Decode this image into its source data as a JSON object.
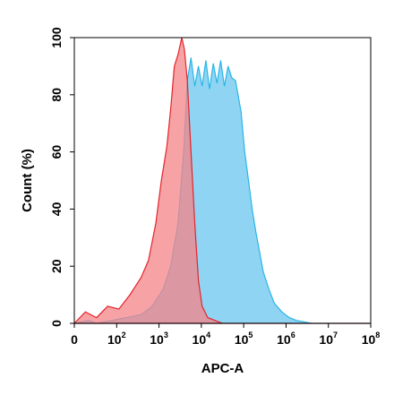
{
  "chart_data": {
    "type": "area",
    "xlabel": "APC-A",
    "ylabel": "Count (%)",
    "x_scale": "log",
    "xlim_exp": [
      0,
      8
    ],
    "ylim": [
      0,
      100
    ],
    "grid": false,
    "x_ticks": [
      {
        "base": "0",
        "exp": ""
      },
      {
        "base": "10",
        "exp": "2"
      },
      {
        "base": "10",
        "exp": "3"
      },
      {
        "base": "10",
        "exp": "4"
      },
      {
        "base": "10",
        "exp": "5"
      },
      {
        "base": "10",
        "exp": "6"
      },
      {
        "base": "10",
        "exp": "7"
      },
      {
        "base": "10",
        "exp": "8"
      }
    ],
    "y_ticks": [
      "0",
      "20",
      "40",
      "60",
      "80",
      "100"
    ],
    "series": [
      {
        "color": "#29b6e8",
        "fill": "#8fd4f2",
        "x_exp": [
          0.0,
          0.4,
          0.6,
          1.0,
          1.4,
          1.8,
          2.1,
          2.4,
          2.6,
          2.8,
          2.95,
          3.05,
          3.15,
          3.25,
          3.35,
          3.45,
          3.55,
          3.65,
          3.75,
          3.85,
          3.95,
          4.05,
          4.15,
          4.25,
          4.35,
          4.5,
          4.6,
          4.7,
          4.8,
          4.9,
          5.0,
          5.1,
          5.25,
          5.4,
          5.6,
          5.8,
          6.0,
          6.2,
          6.4,
          8.0
        ],
        "y": [
          0,
          1,
          0,
          1,
          2,
          3,
          6,
          12,
          20,
          35,
          60,
          85,
          93,
          83,
          90,
          83,
          92,
          82,
          91,
          84,
          92,
          83,
          90,
          86,
          85,
          74,
          60,
          50,
          40,
          32,
          25,
          18,
          12,
          7,
          4,
          2,
          1,
          0.5,
          0,
          0
        ]
      },
      {
        "color": "#e3242b",
        "fill": "#f48488",
        "x_exp": [
          0.0,
          0.3,
          0.6,
          0.9,
          1.2,
          1.5,
          1.8,
          2.0,
          2.2,
          2.35,
          2.5,
          2.6,
          2.7,
          2.8,
          2.9,
          2.97,
          3.05,
          3.15,
          3.25,
          3.35,
          3.45,
          3.6,
          3.8,
          4.0,
          8.0
        ],
        "y": [
          0,
          4,
          2,
          6,
          5,
          10,
          16,
          22,
          35,
          50,
          62,
          75,
          90,
          94,
          100,
          96,
          85,
          60,
          35,
          15,
          6,
          2,
          1,
          0,
          0
        ]
      }
    ]
  }
}
